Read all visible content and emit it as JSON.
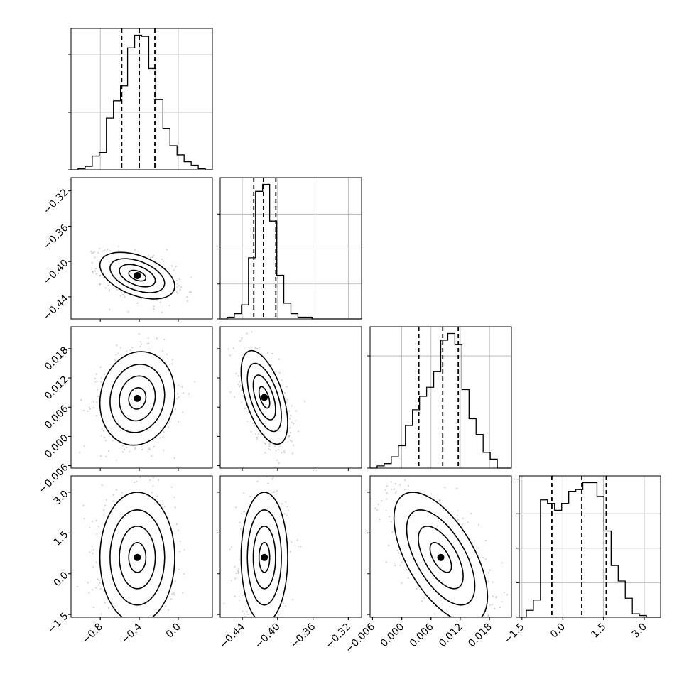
{
  "chart_data": {
    "type": "corner",
    "title": "",
    "parameters": [
      {
        "label": "",
        "range": [
          -1.1,
          0.35
        ],
        "ticks": [
          -0.8,
          -0.4,
          0.0
        ],
        "tick_labels": [
          "−0.8",
          "−0.4",
          "0.0"
        ],
        "quantiles": [
          -0.58,
          -0.4,
          -0.24
        ],
        "gridlines": [
          -0.8,
          -0.4,
          0.0
        ]
      },
      {
        "label": "",
        "range": [
          -0.465,
          -0.305
        ],
        "ticks": [
          -0.44,
          -0.4,
          -0.36,
          -0.32
        ],
        "tick_labels": [
          "−0.44",
          "−0.40",
          "−0.36",
          "−0.32"
        ],
        "quantiles": [
          -0.427,
          -0.416,
          -0.402
        ],
        "gridlines": [
          -0.44,
          -0.4,
          -0.36,
          -0.32
        ]
      },
      {
        "label": "",
        "range": [
          -0.0065,
          0.0225
        ],
        "ticks": [
          -0.006,
          0.0,
          0.006,
          0.012,
          0.018
        ],
        "tick_labels": [
          "−0.006",
          "0.000",
          "0.006",
          "0.012",
          "0.018"
        ],
        "quantiles": [
          0.0035,
          0.0084,
          0.0116
        ],
        "gridlines": [
          0.0,
          0.006,
          0.012,
          0.018
        ]
      },
      {
        "label": "",
        "range": [
          -1.6,
          3.6
        ],
        "ticks": [
          -1.5,
          0.0,
          1.5,
          3.0
        ],
        "tick_labels": [
          "−1.5",
          "0.0",
          "1.5",
          "3.0"
        ],
        "quantiles": [
          -0.4,
          0.7,
          1.6
        ],
        "gridlines": [
          -1.5,
          0.0,
          1.5,
          3.0
        ]
      }
    ],
    "histograms": [
      {
        "edges_start": -1.1,
        "bin_width": 0.0725,
        "counts": [
          0,
          1,
          3,
          12,
          15,
          45,
          60,
          73,
          106,
          117,
          116,
          88,
          61,
          36,
          21,
          13,
          7,
          4,
          1,
          0
        ],
        "y_ticks": [
          0,
          50,
          100
        ]
      },
      {
        "edges_start": -0.465,
        "bin_width": 0.008,
        "counts": [
          0,
          1,
          3,
          8,
          35,
          73,
          77,
          56,
          25,
          9,
          3,
          1,
          1,
          0,
          0,
          0,
          0,
          0,
          0,
          0
        ],
        "y_ticks": [
          0,
          20,
          40,
          60
        ]
      },
      {
        "edges_start": -0.0065,
        "bin_width": 0.00145,
        "counts": [
          0,
          1,
          2,
          5,
          10,
          19,
          26,
          32,
          36,
          43,
          57,
          60,
          55,
          35,
          22,
          15,
          7,
          4,
          0,
          0
        ],
        "y_ticks": [
          0,
          50
        ]
      },
      {
        "edges_start": -1.6,
        "bin_width": 0.26,
        "counts": [
          0,
          4,
          10,
          68,
          66,
          62,
          66,
          73,
          74,
          78,
          78,
          70,
          50,
          30,
          21,
          11,
          2,
          1,
          0,
          0
        ],
        "y_ticks": [
          0,
          20,
          40,
          60,
          80
        ]
      }
    ],
    "pairs": [
      {
        "x": 0,
        "y": 1,
        "mean": [
          -0.42,
          -0.416
        ],
        "sigma": [
          0.16,
          0.011
        ],
        "rho": -0.45,
        "skew": [
          0,
          0
        ]
      },
      {
        "x": 0,
        "y": 2,
        "mean": [
          -0.42,
          0.0078
        ],
        "sigma": [
          0.16,
          0.004
        ],
        "rho": 0.1,
        "skew": [
          0,
          0
        ]
      },
      {
        "x": 1,
        "y": 2,
        "mean": [
          -0.415,
          0.008
        ],
        "sigma": [
          0.011,
          0.004
        ],
        "rho": -0.55,
        "skew": [
          0,
          0
        ]
      },
      {
        "x": 0,
        "y": 3,
        "mean": [
          -0.42,
          0.6
        ],
        "sigma": [
          0.16,
          1.0
        ],
        "rho": 0.0,
        "skew": [
          0,
          0
        ]
      },
      {
        "x": 1,
        "y": 3,
        "mean": [
          -0.415,
          0.6
        ],
        "sigma": [
          0.011,
          1.0
        ],
        "rho": 0.0,
        "skew": [
          0,
          0
        ]
      },
      {
        "x": 2,
        "y": 3,
        "mean": [
          0.008,
          0.6
        ],
        "sigma": [
          0.004,
          1.0
        ],
        "rho": -0.6,
        "skew": [
          0,
          0
        ]
      }
    ],
    "grid": true,
    "legend": "none"
  }
}
